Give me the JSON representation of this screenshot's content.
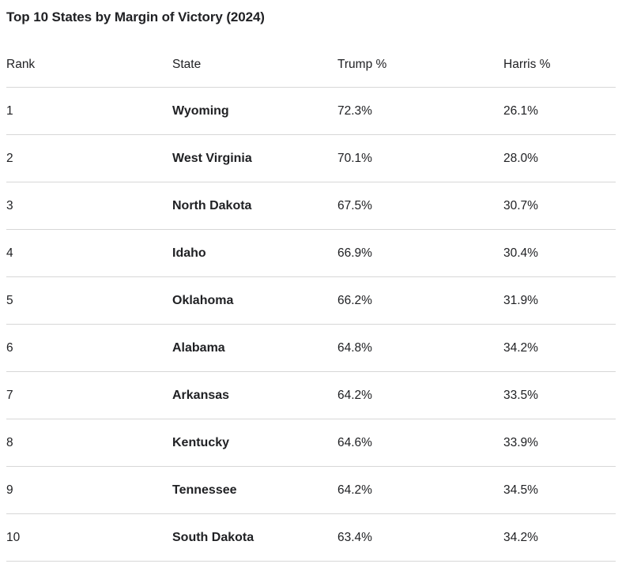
{
  "title": "Top 10 States by Margin of Victory (2024)",
  "table": {
    "columns": [
      "Rank",
      "State",
      "Trump %",
      "Harris %"
    ],
    "rows": [
      {
        "rank": "1",
        "state": "Wyoming",
        "trump": "72.3%",
        "harris": "26.1%"
      },
      {
        "rank": "2",
        "state": "West Virginia",
        "trump": "70.1%",
        "harris": "28.0%"
      },
      {
        "rank": "3",
        "state": "North Dakota",
        "trump": "67.5%",
        "harris": "30.7%"
      },
      {
        "rank": "4",
        "state": "Idaho",
        "trump": "66.9%",
        "harris": "30.4%"
      },
      {
        "rank": "5",
        "state": "Oklahoma",
        "trump": "66.2%",
        "harris": "31.9%"
      },
      {
        "rank": "6",
        "state": "Alabama",
        "trump": "64.8%",
        "harris": "34.2%"
      },
      {
        "rank": "7",
        "state": "Arkansas",
        "trump": "64.2%",
        "harris": "33.5%"
      },
      {
        "rank": "8",
        "state": "Kentucky",
        "trump": "64.6%",
        "harris": "33.9%"
      },
      {
        "rank": "9",
        "state": "Tennessee",
        "trump": "64.2%",
        "harris": "34.5%"
      },
      {
        "rank": "10",
        "state": "South Dakota",
        "trump": "63.4%",
        "harris": "34.2%"
      }
    ]
  },
  "colors": {
    "text": "#202124",
    "divider": "#d7d7d7",
    "background": "#ffffff"
  }
}
